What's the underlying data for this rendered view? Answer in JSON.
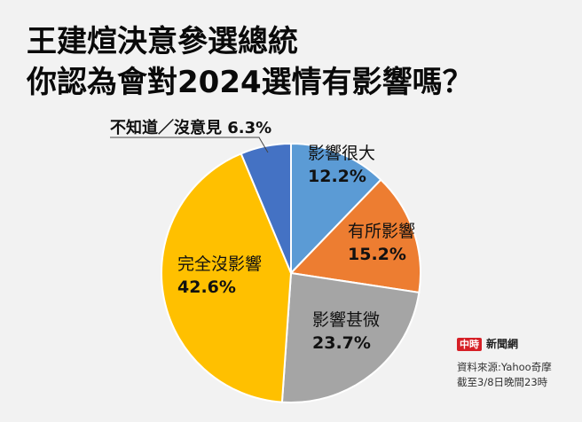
{
  "title": {
    "line1": "王建煊決意參選總統",
    "line2": "你認為會對2024選情有影響嗎？"
  },
  "chart_data": {
    "type": "pie",
    "title": "王建煊決意參選總統 你認為會對2024選情有影響嗎？",
    "start_angle": "12 o'clock, clockwise",
    "categories": [
      "影響很大",
      "有所影響",
      "影響甚微",
      "完全沒影響",
      "不知道／沒意見"
    ],
    "values": [
      12.2,
      15.2,
      23.7,
      42.6,
      6.3
    ],
    "unit": "%",
    "colors": [
      "#5b9bd5",
      "#ed7d31",
      "#a5a5a5",
      "#ffc000",
      "#4472c4"
    ],
    "labels": [
      {
        "name": "影響很大",
        "pct": "12.2%"
      },
      {
        "name": "有所影響",
        "pct": "15.2%"
      },
      {
        "name": "影響甚微",
        "pct": "23.7%"
      },
      {
        "name": "完全沒影響",
        "pct": "42.6%"
      },
      {
        "name": "不知道／沒意見",
        "pct": "6.3%"
      }
    ]
  },
  "labels": {
    "unknown": "不知道／沒意見 6.3%"
  },
  "footer": {
    "logo_badge": "中時",
    "logo_text": "新聞網",
    "source": "資料來源:Yahoo奇摩",
    "date": "截至3/8日晚間23時"
  }
}
